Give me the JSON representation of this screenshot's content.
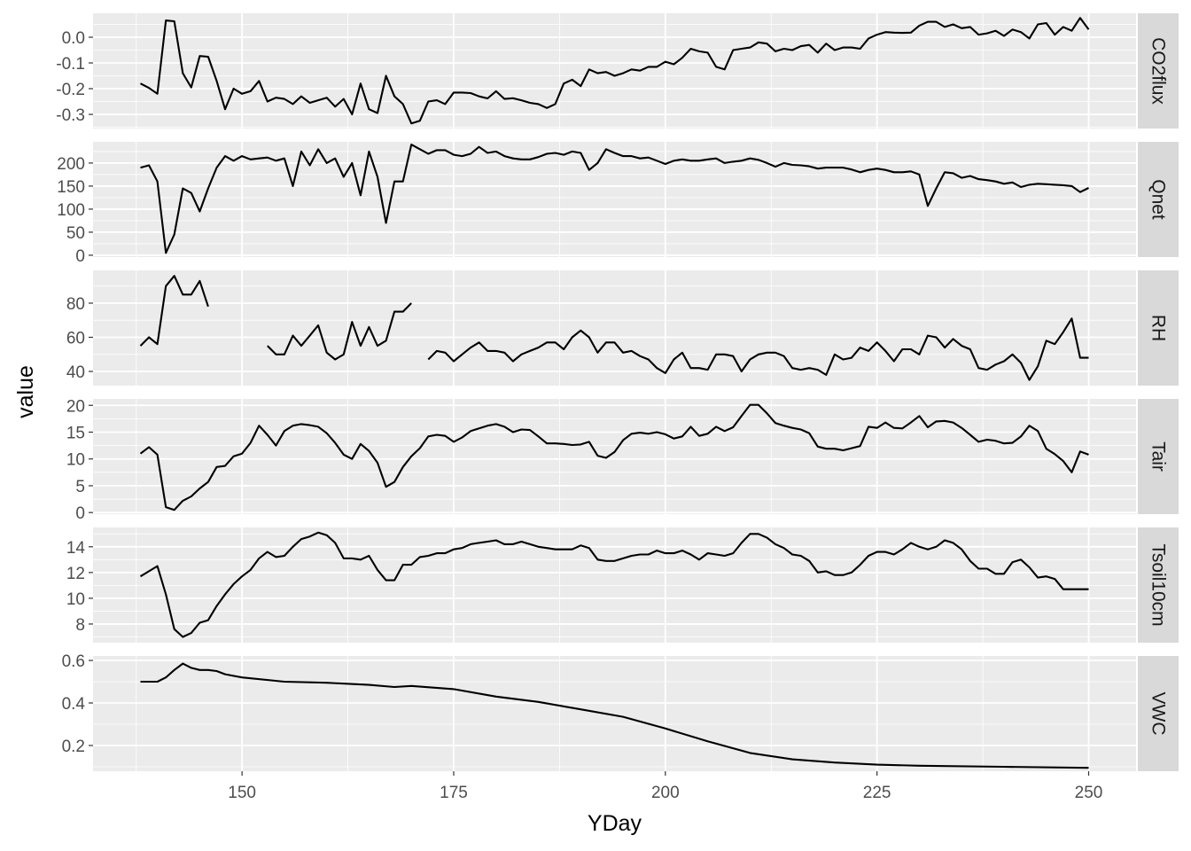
{
  "chart_data": {
    "type": "line",
    "title": "",
    "xlabel": "YDay",
    "ylabel": "value",
    "xlim": [
      132.4,
      255.6
    ],
    "xticks": [
      150,
      175,
      200,
      225,
      250
    ],
    "grid": true,
    "line_color": "#000000",
    "panel_background": "#EBEBEB",
    "strip_background": "#D9D9D9",
    "x": [
      138,
      139,
      140,
      141,
      142,
      143,
      144,
      145,
      146,
      147,
      148,
      149,
      150,
      151,
      152,
      153,
      154,
      155,
      156,
      157,
      158,
      159,
      160,
      161,
      162,
      163,
      164,
      165,
      166,
      167,
      168,
      169,
      170,
      171,
      172,
      173,
      174,
      175,
      176,
      177,
      178,
      179,
      180,
      181,
      182,
      183,
      184,
      185,
      186,
      187,
      188,
      189,
      190,
      191,
      192,
      193,
      194,
      195,
      196,
      197,
      198,
      199,
      200,
      201,
      202,
      203,
      204,
      205,
      206,
      207,
      208,
      209,
      210,
      211,
      212,
      213,
      214,
      215,
      216,
      217,
      218,
      219,
      220,
      221,
      222,
      223,
      224,
      225,
      226,
      227,
      228,
      229,
      230,
      231,
      232,
      233,
      234,
      235,
      236,
      237,
      238,
      239,
      240,
      241,
      242,
      243,
      244,
      245,
      246,
      247,
      248,
      249,
      250
    ],
    "panels": [
      {
        "name": "CO2flux",
        "ylim": [
          -0.355,
          0.093
        ],
        "yticks": [
          -0.3,
          -0.2,
          -0.1,
          0.0
        ],
        "ytick_labels": [
          "-0.3",
          "-0.2",
          "-0.1",
          "0.0"
        ],
        "values": [
          -0.18,
          -0.197,
          -0.22,
          0.065,
          0.062,
          -0.14,
          -0.195,
          -0.073,
          -0.076,
          -0.17,
          -0.28,
          -0.2,
          -0.22,
          -0.21,
          -0.17,
          -0.25,
          -0.235,
          -0.24,
          -0.26,
          -0.23,
          -0.255,
          -0.245,
          -0.235,
          -0.27,
          -0.24,
          -0.3,
          -0.18,
          -0.28,
          -0.295,
          -0.15,
          -0.23,
          -0.26,
          -0.335,
          -0.325,
          -0.25,
          -0.245,
          -0.26,
          -0.215,
          -0.215,
          -0.217,
          -0.23,
          -0.238,
          -0.21,
          -0.24,
          -0.237,
          -0.245,
          -0.255,
          -0.26,
          -0.275,
          -0.26,
          -0.18,
          -0.165,
          -0.19,
          -0.125,
          -0.14,
          -0.135,
          -0.15,
          -0.14,
          -0.125,
          -0.13,
          -0.115,
          -0.115,
          -0.095,
          -0.105,
          -0.08,
          -0.045,
          -0.055,
          -0.06,
          -0.115,
          -0.125,
          -0.05,
          -0.045,
          -0.04,
          -0.02,
          -0.025,
          -0.055,
          -0.045,
          -0.05,
          -0.035,
          -0.03,
          -0.06,
          -0.025,
          -0.05,
          -0.04,
          -0.04,
          -0.045,
          -0.005,
          0.01,
          0.02,
          0.018,
          0.017,
          0.018,
          0.045,
          0.06,
          0.06,
          0.04,
          0.05,
          0.035,
          0.04,
          0.01,
          0.015,
          0.025,
          0.005,
          0.03,
          0.02,
          -0.005,
          0.05,
          0.055,
          0.01,
          0.04,
          0.025,
          0.075,
          0.03
        ]
      },
      {
        "name": "Qnet",
        "ylim": [
          -4,
          246
        ],
        "yticks": [
          0,
          50,
          100,
          150,
          200
        ],
        "ytick_labels": [
          "0",
          "50",
          "100",
          "150",
          "200"
        ],
        "values": [
          190,
          195,
          160,
          5,
          45,
          145,
          135,
          95,
          145,
          190,
          215,
          205,
          215,
          208,
          210,
          212,
          205,
          210,
          150,
          225,
          195,
          230,
          200,
          210,
          170,
          200,
          130,
          225,
          170,
          70,
          160,
          160,
          240,
          230,
          220,
          228,
          228,
          218,
          215,
          220,
          235,
          222,
          225,
          215,
          210,
          208,
          208,
          213,
          220,
          222,
          218,
          225,
          222,
          185,
          200,
          230,
          222,
          215,
          215,
          210,
          212,
          205,
          198,
          205,
          208,
          205,
          205,
          208,
          210,
          200,
          203,
          205,
          210,
          207,
          200,
          192,
          200,
          196,
          195,
          193,
          188,
          190,
          190,
          190,
          186,
          180,
          185,
          188,
          185,
          180,
          180,
          182,
          175,
          107,
          145,
          180,
          178,
          168,
          172,
          165,
          163,
          160,
          155,
          158,
          148,
          153,
          155,
          154,
          153,
          152,
          150,
          137,
          146
        ]
      },
      {
        "name": "RH",
        "ylim": [
          31.7,
          99.2
        ],
        "yticks": [
          40,
          60,
          80
        ],
        "ytick_labels": [
          "40",
          "60",
          "80"
        ],
        "values": [
          55,
          60,
          56,
          90,
          96,
          85,
          85,
          93,
          78,
          null,
          null,
          null,
          null,
          null,
          null,
          55,
          50,
          50,
          61,
          55,
          61,
          67,
          51,
          47,
          50,
          69,
          55,
          66,
          55,
          58,
          75,
          75,
          80,
          null,
          47,
          52,
          51,
          46,
          50,
          54,
          57,
          52,
          52,
          51,
          46,
          50,
          52,
          54,
          57,
          57,
          53,
          60,
          64,
          60,
          51,
          57,
          57,
          51,
          52,
          49,
          47,
          42,
          39,
          47,
          51,
          42,
          42,
          41,
          50,
          50,
          49,
          40,
          47,
          50,
          51,
          51,
          49,
          42,
          41,
          42,
          41,
          38,
          50,
          47,
          48,
          54,
          52,
          57,
          52,
          46,
          53,
          53,
          50,
          61,
          60,
          54,
          59,
          55,
          53,
          42,
          41,
          44,
          46,
          50,
          45,
          35,
          43,
          58,
          56,
          63,
          71,
          48,
          48
        ]
      },
      {
        "name": "Tair",
        "ylim": [
          -0.3,
          21.2
        ],
        "yticks": [
          0,
          5,
          10,
          15,
          20
        ],
        "ytick_labels": [
          "0",
          "5",
          "10",
          "15",
          "20"
        ],
        "values": [
          11,
          12.2,
          10.8,
          1,
          0.5,
          2.2,
          3,
          4.5,
          5.7,
          8.5,
          8.7,
          10.5,
          11,
          13,
          16.2,
          14.5,
          12.5,
          15.2,
          16.2,
          16.5,
          16.3,
          16,
          14.8,
          13,
          10.8,
          10,
          12.8,
          11.5,
          9.3,
          4.8,
          5.7,
          8.5,
          10.5,
          12,
          14.2,
          14.5,
          14.3,
          13.2,
          14,
          15.2,
          15.7,
          16.2,
          16.5,
          16,
          15,
          15.5,
          15.4,
          14.2,
          12.9,
          12.9,
          12.8,
          12.6,
          12.7,
          13.2,
          10.6,
          10.2,
          11.3,
          13.5,
          14.7,
          14.9,
          14.7,
          15,
          14.6,
          13.8,
          14.2,
          16,
          14.3,
          14.7,
          16,
          15.2,
          15.9,
          18,
          20.1,
          20.1,
          18.5,
          16.7,
          16.2,
          15.8,
          15.5,
          14.8,
          12.3,
          11.9,
          11.9,
          11.6,
          12,
          12.4,
          16,
          15.8,
          16.8,
          15.8,
          15.7,
          16.8,
          18,
          15.9,
          17,
          17.1,
          16.8,
          15.8,
          14.5,
          13.2,
          13.6,
          13.4,
          12.9,
          13,
          14.2,
          16.2,
          15.2,
          11.9,
          10.9,
          9.6,
          7.5,
          11.4,
          10.8
        ]
      },
      {
        "name": "Tsoil10cm",
        "ylim": [
          6.55,
          15.5
        ],
        "yticks": [
          8,
          10,
          12,
          14
        ],
        "ytick_labels": [
          "8",
          "10",
          "12",
          "14"
        ],
        "values": [
          11.7,
          12.1,
          12.5,
          10.3,
          7.6,
          7,
          7.3,
          8.1,
          8.3,
          9.4,
          10.3,
          11.1,
          11.7,
          12.2,
          13.1,
          13.6,
          13.2,
          13.3,
          14,
          14.6,
          14.8,
          15.1,
          14.9,
          14.3,
          13.1,
          13.1,
          13,
          13.3,
          12.2,
          11.4,
          11.4,
          12.6,
          12.6,
          13.2,
          13.3,
          13.5,
          13.5,
          13.8,
          13.9,
          14.2,
          14.3,
          14.4,
          14.5,
          14.2,
          14.2,
          14.4,
          14.2,
          14,
          13.9,
          13.8,
          13.8,
          13.8,
          14.1,
          13.9,
          13,
          12.9,
          12.9,
          13.1,
          13.3,
          13.4,
          13.4,
          13.7,
          13.5,
          13.5,
          13.7,
          13.4,
          13,
          13.5,
          13.4,
          13.3,
          13.5,
          14.3,
          15,
          15,
          14.7,
          14.2,
          13.9,
          13.4,
          13.3,
          12.9,
          12,
          12.1,
          11.8,
          11.8,
          12,
          12.6,
          13.3,
          13.6,
          13.6,
          13.4,
          13.8,
          14.3,
          14,
          13.8,
          14,
          14.5,
          14.3,
          13.8,
          12.9,
          12.3,
          12.3,
          11.9,
          11.9,
          12.8,
          13,
          12.4,
          11.6,
          11.7,
          11.5,
          10.7,
          10.7,
          10.7,
          10.7
        ]
      },
      {
        "name": "VWC",
        "ylim": [
          0.079,
          0.621
        ],
        "yticks": [
          0.2,
          0.4,
          0.6
        ],
        "ytick_labels": [
          "0.2",
          "0.4",
          "0.6"
        ],
        "x": [
          138,
          140,
          141,
          142,
          143,
          144,
          145,
          146,
          147,
          148,
          150,
          155,
          160,
          165,
          168,
          170,
          175,
          180,
          185,
          190,
          195,
          200,
          205,
          210,
          215,
          220,
          225,
          230,
          240,
          250
        ],
        "values": [
          0.5,
          0.5,
          0.52,
          0.555,
          0.585,
          0.565,
          0.555,
          0.555,
          0.55,
          0.535,
          0.52,
          0.5,
          0.495,
          0.485,
          0.475,
          0.48,
          0.465,
          0.43,
          0.405,
          0.37,
          0.335,
          0.28,
          0.22,
          0.165,
          0.135,
          0.12,
          0.11,
          0.105,
          0.1,
          0.095
        ]
      }
    ]
  }
}
